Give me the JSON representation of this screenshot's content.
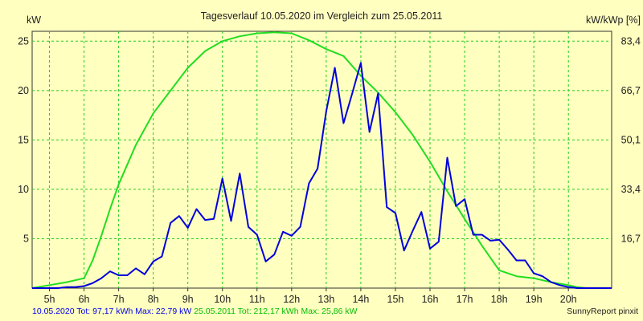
{
  "chart_data": {
    "type": "line",
    "title": "Tagesverlauf 10.05.2020 im Vergleich zum 25.05.2011",
    "ylabel_left": "kW",
    "ylabel_right": "kW/kWp [%]",
    "x_ticks": [
      "5h",
      "6h",
      "7h",
      "8h",
      "9h",
      "10h",
      "11h",
      "12h",
      "13h",
      "14h",
      "15h",
      "16h",
      "17h",
      "18h",
      "19h",
      "20h"
    ],
    "xlim": [
      4.5,
      21.25
    ],
    "ylim": [
      0,
      26
    ],
    "y_ticks": [
      5,
      10,
      15,
      20,
      25
    ],
    "y2_ticks": [
      "16,7",
      "33,4",
      "50,1",
      "66,7",
      "83,4"
    ],
    "grid": true,
    "series": [
      {
        "name": "10.05.2020",
        "color": "#0000dd",
        "x": [
          4.5,
          5.0,
          5.25,
          5.5,
          5.75,
          6.0,
          6.25,
          6.5,
          6.75,
          7.0,
          7.25,
          7.5,
          7.75,
          8.0,
          8.25,
          8.5,
          8.75,
          9.0,
          9.25,
          9.5,
          9.75,
          10.0,
          10.25,
          10.5,
          10.75,
          11.0,
          11.25,
          11.5,
          11.75,
          12.0,
          12.25,
          12.5,
          12.75,
          13.0,
          13.25,
          13.5,
          13.75,
          14.0,
          14.25,
          14.5,
          14.75,
          15.0,
          15.25,
          15.5,
          15.75,
          16.0,
          16.25,
          16.5,
          16.75,
          17.0,
          17.25,
          17.5,
          17.75,
          18.0,
          18.25,
          18.5,
          18.75,
          19.0,
          19.25,
          19.5,
          19.75,
          20.0,
          20.25,
          20.5,
          21.25
        ],
        "values": [
          0,
          0,
          0,
          0.1,
          0.1,
          0.2,
          0.5,
          1.0,
          1.7,
          1.3,
          1.3,
          2.0,
          1.4,
          2.7,
          3.2,
          6.6,
          7.3,
          6.1,
          8.0,
          6.9,
          7.0,
          11.1,
          6.8,
          11.6,
          6.2,
          5.4,
          2.7,
          3.4,
          5.7,
          5.3,
          6.2,
          10.6,
          12.1,
          17.9,
          22.3,
          16.7,
          19.7,
          22.8,
          15.8,
          19.7,
          8.2,
          7.6,
          3.8,
          5.8,
          7.7,
          4.0,
          4.7,
          13.2,
          8.3,
          9.0,
          5.4,
          5.4,
          4.8,
          4.9,
          3.9,
          2.8,
          2.8,
          1.5,
          1.2,
          0.6,
          0.3,
          0.1,
          0,
          0,
          0
        ]
      },
      {
        "name": "25.05.2011",
        "color": "#22dd22",
        "x": [
          4.5,
          5.0,
          5.5,
          6.0,
          6.25,
          6.5,
          6.75,
          7.0,
          7.5,
          8.0,
          8.5,
          9.0,
          9.5,
          10.0,
          10.5,
          11.0,
          11.5,
          12.0,
          12.5,
          13.0,
          13.5,
          14.0,
          14.5,
          15.0,
          15.5,
          16.0,
          16.5,
          17.0,
          17.5,
          18.0,
          18.5,
          19.0,
          19.25,
          19.5,
          20.0,
          20.25,
          20.5,
          21.25
        ],
        "values": [
          0,
          0.3,
          0.6,
          1.0,
          2.8,
          5.3,
          8.0,
          10.5,
          14.5,
          17.7,
          20.0,
          22.3,
          24.0,
          25.0,
          25.5,
          25.8,
          25.9,
          25.8,
          25.1,
          24.2,
          23.5,
          21.5,
          19.8,
          17.8,
          15.5,
          12.8,
          9.8,
          7.0,
          4.3,
          1.8,
          1.2,
          1.0,
          0.8,
          0.6,
          0.3,
          0.1,
          0,
          0
        ]
      }
    ]
  },
  "footer": {
    "series1_text": "10.05.2020 Tot: 97,17 kWh Max: 22,79 kW",
    "series2_text": "25.05.2011 Tot: 212,17 kWh Max: 25,86 kW",
    "credit": "SunnyReport pinxit"
  },
  "colors": {
    "background": "#ffffc0",
    "plot_background": "#ffffc0",
    "grid": "#22cc22"
  }
}
